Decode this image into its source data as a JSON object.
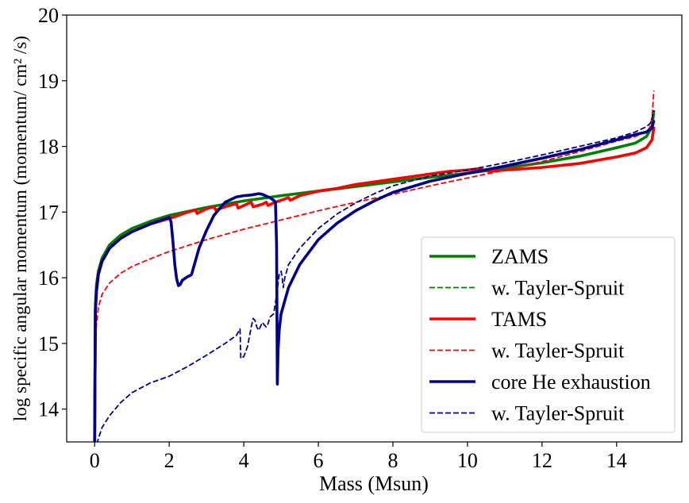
{
  "chart_data": {
    "type": "line",
    "title": "",
    "xlabel": "Mass (Msun)",
    "ylabel": "log specific angular momentum (momentum/ cm² /s)",
    "xlim": [
      -0.75,
      15.75
    ],
    "ylim": [
      13.5,
      20
    ],
    "xticks": [
      0,
      2,
      4,
      6,
      8,
      10,
      12,
      14
    ],
    "yticks": [
      14,
      15,
      16,
      17,
      18,
      19,
      20
    ],
    "xtick_labels": [
      "0",
      "2",
      "4",
      "6",
      "8",
      "10",
      "12",
      "14"
    ],
    "ytick_labels": [
      "14",
      "15",
      "16",
      "17",
      "18",
      "19",
      "20"
    ],
    "grid": false,
    "legend_position": "lower-right",
    "series": [
      {
        "name": "ZAMS",
        "color": "#008000",
        "style": "solid",
        "x": [
          0,
          0.02,
          0.05,
          0.1,
          0.2,
          0.4,
          0.7,
          1.0,
          1.5,
          2.0,
          3.0,
          4.0,
          5.0,
          6.0,
          7.0,
          8.0,
          9.0,
          10.0,
          11.0,
          12.0,
          13.0,
          14.0,
          14.5,
          14.8,
          14.95,
          15.0
        ],
        "y": [
          13.5,
          15.6,
          15.9,
          16.1,
          16.3,
          16.5,
          16.65,
          16.75,
          16.86,
          16.95,
          17.07,
          17.17,
          17.25,
          17.32,
          17.39,
          17.46,
          17.53,
          17.59,
          17.67,
          17.75,
          17.85,
          17.98,
          18.05,
          18.15,
          18.3,
          18.55
        ]
      },
      {
        "name": "w. Tayler-Spruit",
        "color": "#008000",
        "style": "dashed",
        "x": [],
        "y": []
      },
      {
        "name": "TAMS",
        "color": "#ff0000",
        "style": "solid",
        "x": [
          0,
          0.02,
          0.05,
          0.1,
          0.2,
          0.4,
          0.7,
          1.0,
          1.5,
          2.0,
          2.5,
          2.7,
          2.75,
          3.0,
          3.2,
          3.25,
          3.5,
          3.8,
          3.85,
          4.0,
          4.2,
          4.25,
          4.5,
          4.6,
          4.65,
          4.8,
          5.0,
          5.2,
          5.25,
          5.5,
          6.0,
          6.5,
          7.0,
          7.5,
          8.0,
          8.5,
          9.0,
          9.5,
          10.0,
          10.3,
          10.6,
          11.0,
          12.0,
          13.0,
          14.0,
          14.5,
          14.8,
          14.95,
          15.0
        ],
        "y": [
          13.5,
          15.5,
          15.8,
          16.05,
          16.25,
          16.45,
          16.6,
          16.7,
          16.82,
          16.9,
          17.0,
          17.03,
          16.98,
          17.05,
          17.08,
          17.03,
          17.08,
          17.13,
          17.06,
          17.1,
          17.15,
          17.08,
          17.12,
          17.15,
          17.1,
          17.14,
          17.18,
          17.22,
          17.18,
          17.25,
          17.32,
          17.36,
          17.42,
          17.46,
          17.5,
          17.54,
          17.58,
          17.62,
          17.64,
          17.66,
          17.62,
          17.64,
          17.68,
          17.74,
          17.84,
          17.9,
          17.98,
          18.1,
          18.3
        ]
      },
      {
        "name": "w. Tayler-Spruit",
        "color": "#ff0000",
        "style": "dashed",
        "x": [
          0,
          0.02,
          0.05,
          0.1,
          0.2,
          0.4,
          0.7,
          1.0,
          1.5,
          2.0,
          3.0,
          4.0,
          5.0,
          6.0,
          7.0,
          8.0,
          9.0,
          10.0,
          11.0,
          12.0,
          13.0,
          14.0,
          14.5,
          14.8,
          14.9,
          14.95,
          15.0
        ],
        "y": [
          14.5,
          15.0,
          15.3,
          15.55,
          15.75,
          15.92,
          16.07,
          16.17,
          16.29,
          16.4,
          16.58,
          16.74,
          16.88,
          17.02,
          17.15,
          17.27,
          17.4,
          17.52,
          17.64,
          17.77,
          17.92,
          18.08,
          18.15,
          18.22,
          18.3,
          18.45,
          18.85
        ]
      },
      {
        "name": "core He exhaustion",
        "color": "#00008b",
        "style": "solid",
        "x": [
          0,
          0.02,
          0.05,
          0.1,
          0.2,
          0.4,
          0.7,
          1.0,
          1.5,
          1.8,
          2.0,
          2.05,
          2.1,
          2.15,
          2.2,
          2.25,
          2.3,
          2.35,
          2.4,
          2.45,
          2.5,
          2.55,
          2.6,
          2.65,
          2.8,
          3.0,
          3.2,
          3.5,
          3.8,
          4.0,
          4.2,
          4.4,
          4.5,
          4.7,
          4.8,
          4.85,
          4.88,
          4.9,
          4.92,
          4.95,
          5.0,
          5.2,
          5.5,
          6.0,
          6.5,
          7.0,
          7.5,
          8.0,
          9.0,
          10.0,
          11.0,
          12.0,
          13.0,
          14.0,
          14.5,
          14.8,
          14.95,
          15.0
        ],
        "y": [
          13.5,
          15.5,
          15.8,
          16.05,
          16.25,
          16.45,
          16.6,
          16.7,
          16.82,
          16.88,
          16.92,
          16.85,
          16.55,
          16.2,
          15.98,
          15.88,
          15.9,
          15.96,
          15.98,
          16.0,
          16.02,
          16.03,
          16.05,
          16.15,
          16.45,
          16.72,
          16.95,
          17.15,
          17.23,
          17.25,
          17.26,
          17.28,
          17.27,
          17.22,
          17.18,
          17.15,
          16.5,
          14.38,
          14.9,
          15.2,
          15.45,
          15.85,
          16.2,
          16.58,
          16.83,
          17.02,
          17.17,
          17.3,
          17.47,
          17.59,
          17.7,
          17.82,
          17.95,
          18.1,
          18.18,
          18.22,
          18.28,
          18.4
        ]
      },
      {
        "name": "w. Tayler-Spruit",
        "color": "#00008b",
        "style": "dashed",
        "x": [
          0,
          0.05,
          0.1,
          0.2,
          0.4,
          0.7,
          1.0,
          1.5,
          2.0,
          2.5,
          3.0,
          3.5,
          3.8,
          3.9,
          3.92,
          4.0,
          4.1,
          4.2,
          4.25,
          4.3,
          4.35,
          4.4,
          4.5,
          4.55,
          4.6,
          4.65,
          4.7,
          4.8,
          4.85,
          4.9,
          4.95,
          5.0,
          5.03,
          5.06,
          5.1,
          5.15,
          5.2,
          5.5,
          6.0,
          6.5,
          7.0,
          7.5,
          8.0,
          9.0,
          10.0,
          11.0,
          12.0,
          13.0,
          14.0,
          14.5,
          14.8,
          14.9,
          14.95,
          15.0
        ],
        "y": [
          13.35,
          13.45,
          13.55,
          13.72,
          13.9,
          14.1,
          14.25,
          14.4,
          14.5,
          14.65,
          14.82,
          15.0,
          15.12,
          15.22,
          14.77,
          14.8,
          14.95,
          15.25,
          15.38,
          15.35,
          15.25,
          15.2,
          15.32,
          15.28,
          15.25,
          15.3,
          15.4,
          15.45,
          15.62,
          15.82,
          16.05,
          16.1,
          16.0,
          15.85,
          16.0,
          16.1,
          16.2,
          16.45,
          16.75,
          16.97,
          17.14,
          17.28,
          17.4,
          17.55,
          17.64,
          17.75,
          17.87,
          18.0,
          18.13,
          18.22,
          18.3,
          18.35,
          18.42,
          18.55
        ]
      }
    ]
  }
}
